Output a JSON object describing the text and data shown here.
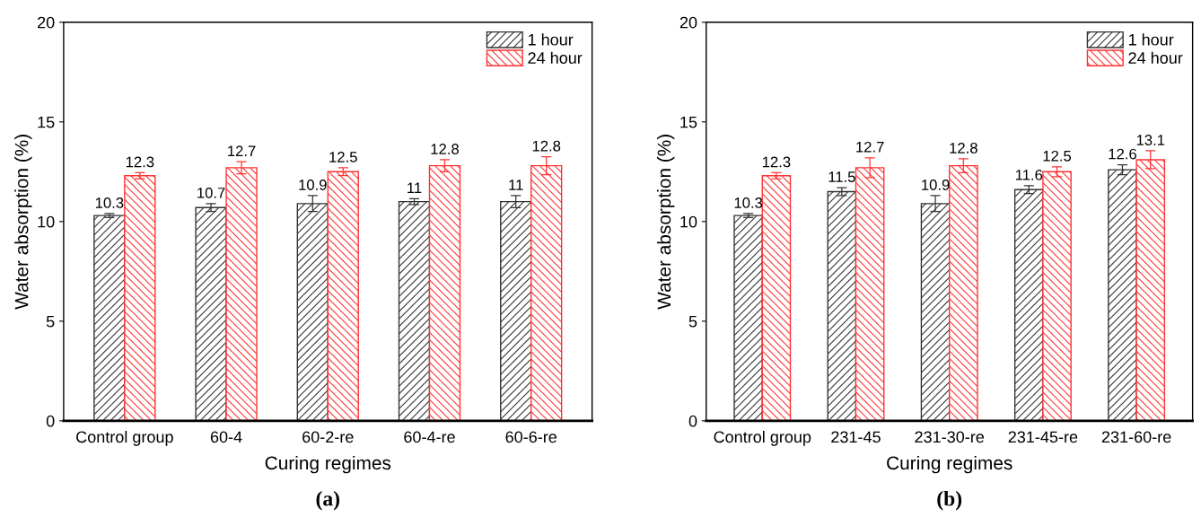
{
  "chart_data": [
    {
      "type": "bar",
      "categories": [
        "Control group",
        "60-4",
        "60-2-re",
        "60-4-re",
        "60-6-re"
      ],
      "xlabel": "Curing regimes",
      "ylabel": "Water absorption (%)",
      "ylim": [
        0,
        20
      ],
      "yticks": [
        0,
        5,
        10,
        15,
        20
      ],
      "legend": "top right",
      "data_labels": true,
      "annotations": [
        "(a)"
      ],
      "series": [
        {
          "name": "1 hour",
          "color": "#333333",
          "values": [
            10.3,
            10.7,
            10.9,
            11,
            11
          ],
          "errors": [
            0.1,
            0.2,
            0.4,
            0.15,
            0.3
          ]
        },
        {
          "name": "24 hour",
          "color": "#ff3333",
          "values": [
            12.3,
            12.7,
            12.5,
            12.8,
            12.8
          ],
          "errors": [
            0.15,
            0.3,
            0.2,
            0.3,
            0.45
          ]
        }
      ]
    },
    {
      "type": "bar",
      "categories": [
        "Control group",
        "231-45",
        "231-30-re",
        "231-45-re",
        "231-60-re"
      ],
      "xlabel": "Curing regimes",
      "ylabel": "Water absorption (%)",
      "ylim": [
        0,
        20
      ],
      "yticks": [
        0,
        5,
        10,
        15,
        20
      ],
      "legend": "top right",
      "data_labels": true,
      "annotations": [
        "(b)"
      ],
      "series": [
        {
          "name": "1 hour",
          "color": "#333333",
          "values": [
            10.3,
            11.5,
            10.9,
            11.6,
            12.6
          ],
          "errors": [
            0.1,
            0.2,
            0.4,
            0.2,
            0.25
          ]
        },
        {
          "name": "24 hour",
          "color": "#ff3333",
          "values": [
            12.3,
            12.7,
            12.8,
            12.5,
            13.1
          ],
          "errors": [
            0.15,
            0.5,
            0.35,
            0.25,
            0.45
          ]
        }
      ]
    }
  ]
}
